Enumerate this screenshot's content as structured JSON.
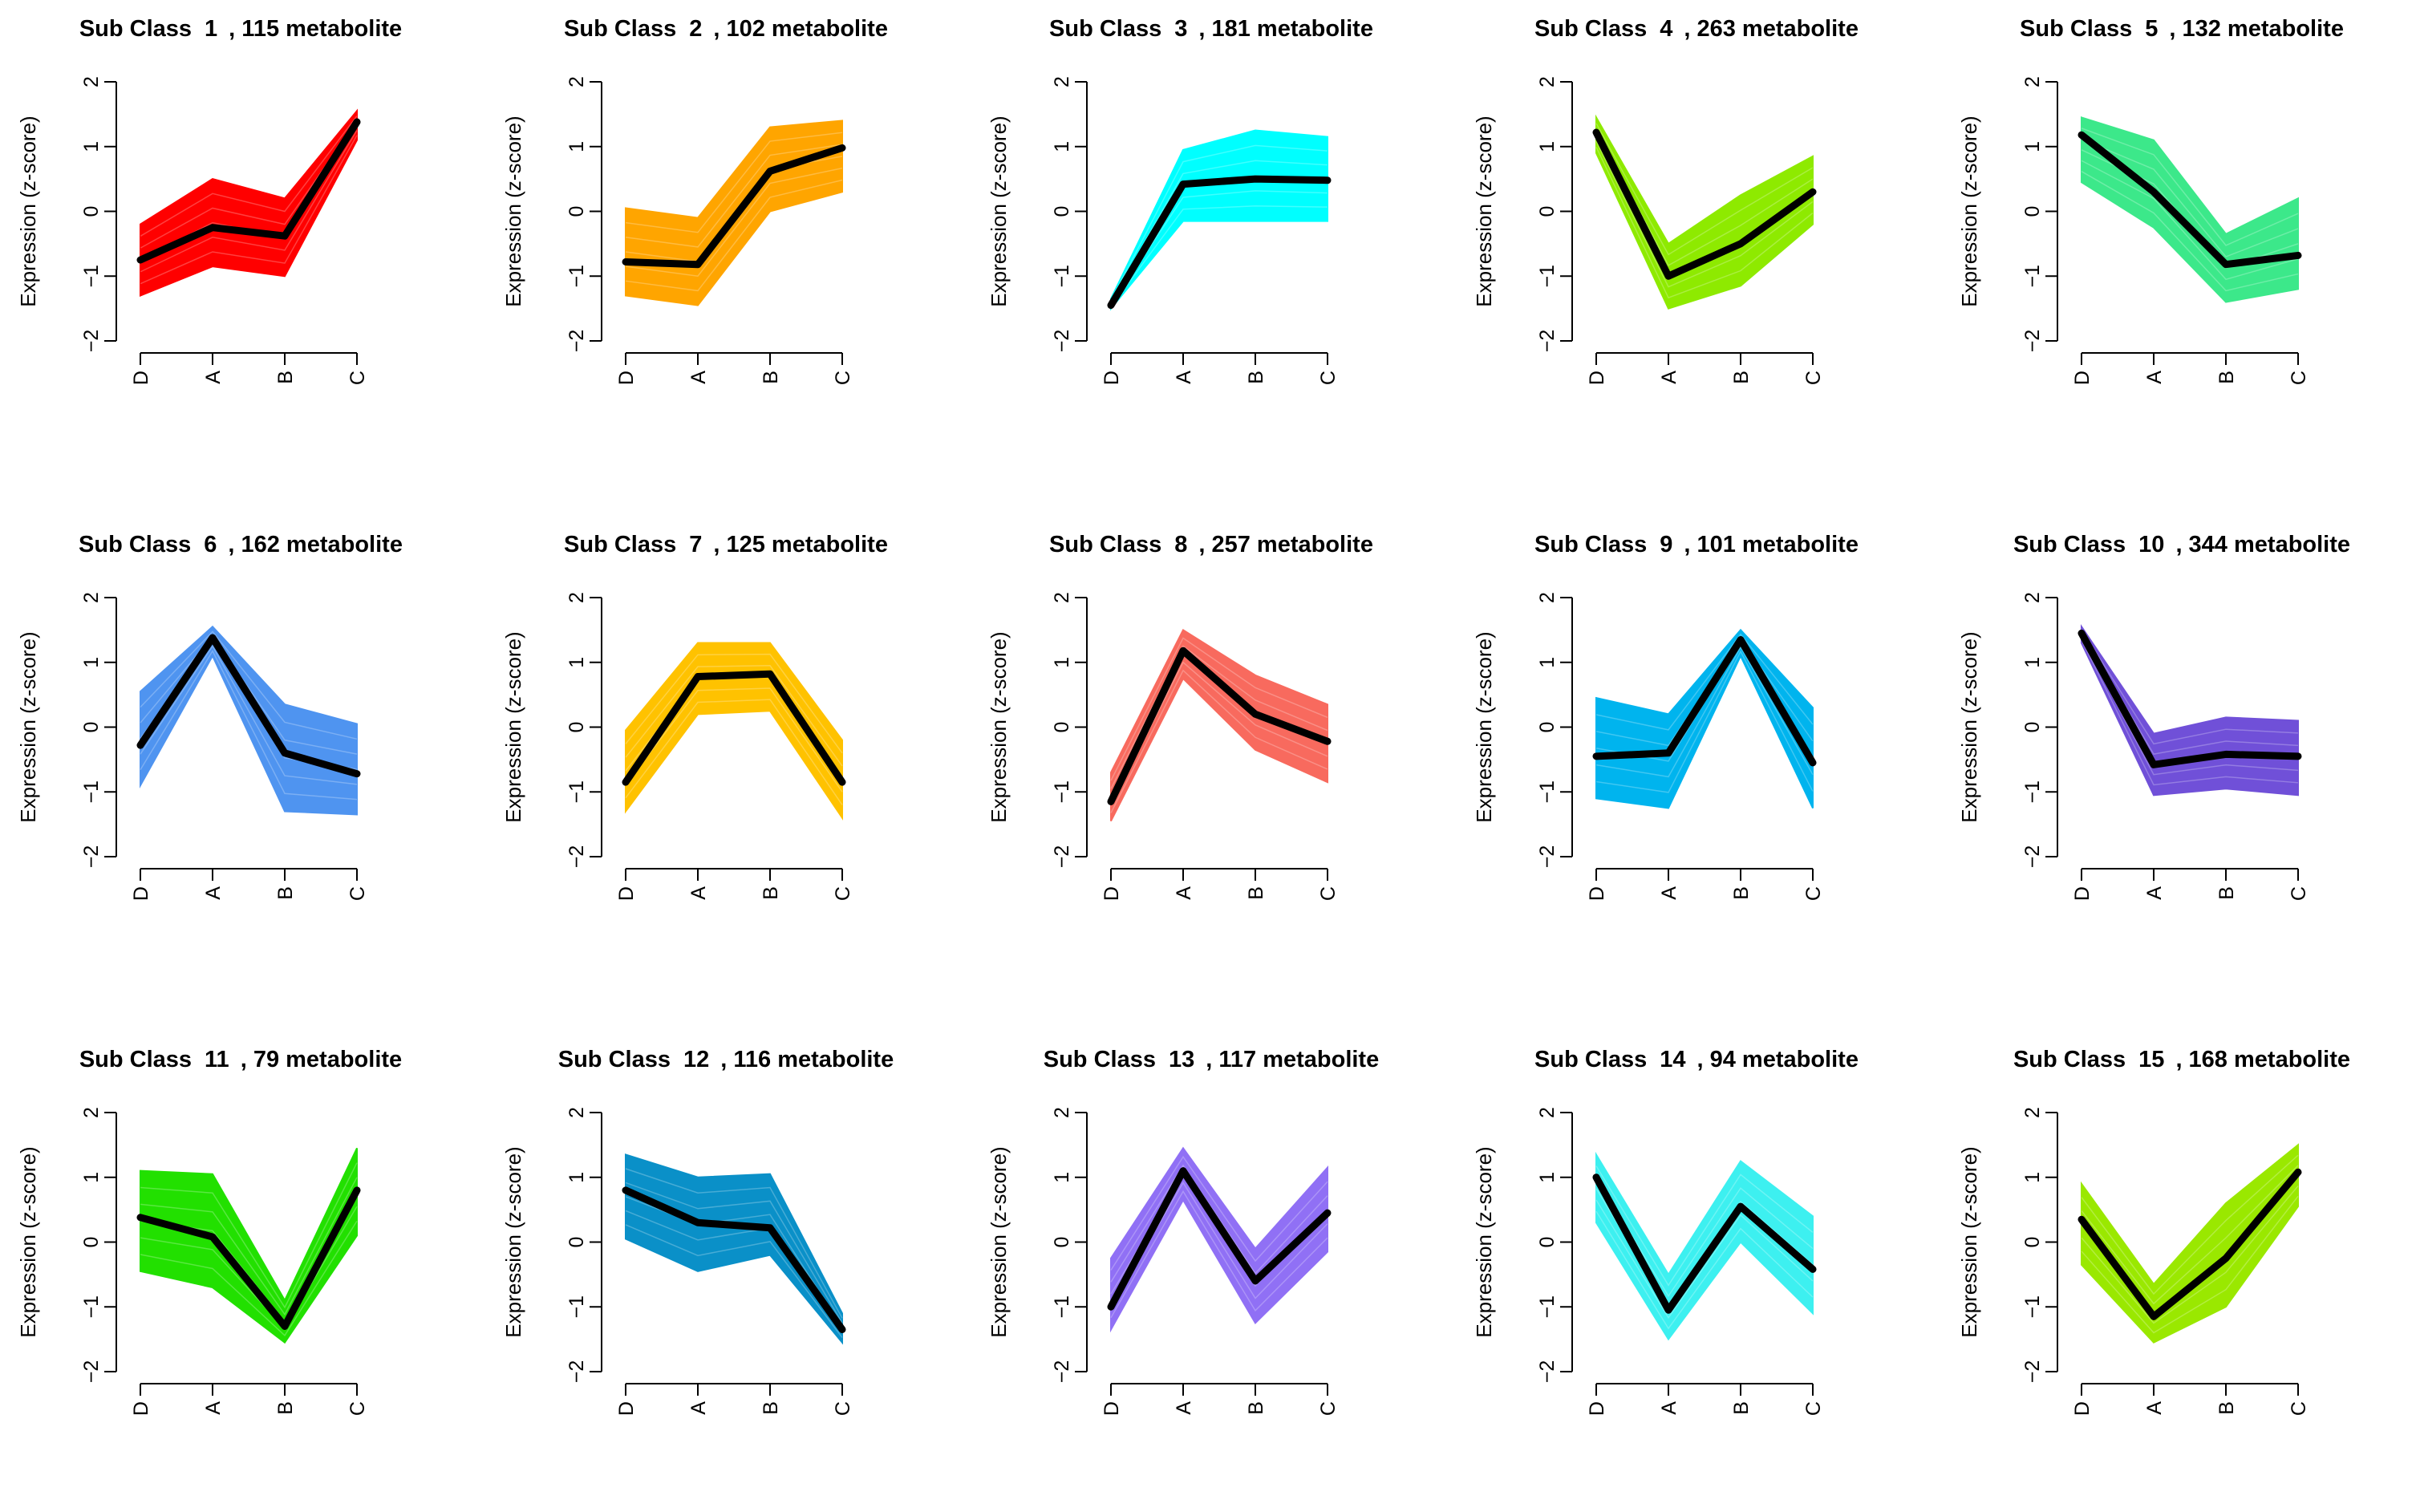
{
  "chart_data": [
    {
      "type": "line",
      "title_prefix": "Sub Class",
      "class_id": "1",
      "count_text": ", 115 metabolite",
      "ylabel": "Expression (z-score)",
      "categories": [
        "D",
        "A",
        "B",
        "C"
      ],
      "ylim": [
        -2,
        2
      ],
      "yticks": [
        "-2",
        "-1",
        "0",
        "1",
        "2"
      ],
      "color": "#ff0000",
      "mean": [
        -0.75,
        -0.25,
        -0.38,
        1.38
      ],
      "upper": [
        -0.2,
        0.5,
        0.2,
        1.55
      ],
      "lower": [
        -1.3,
        -0.85,
        -1.0,
        1.1
      ]
    },
    {
      "type": "line",
      "title_prefix": "Sub Class",
      "class_id": "2",
      "count_text": ", 102 metabolite",
      "ylabel": "Expression (z-score)",
      "categories": [
        "D",
        "A",
        "B",
        "C"
      ],
      "ylim": [
        -2,
        2
      ],
      "yticks": [
        "-2",
        "-1",
        "0",
        "1",
        "2"
      ],
      "color": "#ffa500",
      "mean": [
        -0.78,
        -0.82,
        0.62,
        0.98
      ],
      "upper": [
        0.05,
        -0.1,
        1.3,
        1.4
      ],
      "lower": [
        -1.3,
        -1.45,
        0.0,
        0.3
      ]
    },
    {
      "type": "line",
      "title_prefix": "Sub Class",
      "class_id": "3",
      "count_text": ", 181 metabolite",
      "ylabel": "Expression (z-score)",
      "categories": [
        "D",
        "A",
        "B",
        "C"
      ],
      "ylim": [
        -2,
        2
      ],
      "yticks": [
        "-2",
        "-1",
        "0",
        "1",
        "2"
      ],
      "color": "#00ffff",
      "mean": [
        -1.45,
        0.42,
        0.5,
        0.48
      ],
      "upper": [
        -1.35,
        0.95,
        1.25,
        1.15
      ],
      "lower": [
        -1.5,
        -0.15,
        -0.15,
        -0.15
      ]
    },
    {
      "type": "line",
      "title_prefix": "Sub Class",
      "class_id": "4",
      "count_text": ", 263 metabolite",
      "ylabel": "Expression (z-score)",
      "categories": [
        "D",
        "A",
        "B",
        "C"
      ],
      "ylim": [
        -2,
        2
      ],
      "yticks": [
        "-2",
        "-1",
        "0",
        "1",
        "2"
      ],
      "color": "#8eea00",
      "mean": [
        1.22,
        -1.0,
        -0.5,
        0.3
      ],
      "upper": [
        1.45,
        -0.5,
        0.25,
        0.85
      ],
      "lower": [
        0.9,
        -1.5,
        -1.15,
        -0.2
      ]
    },
    {
      "type": "line",
      "title_prefix": "Sub Class",
      "class_id": "5",
      "count_text": ", 132 metabolite",
      "ylabel": "Expression (z-score)",
      "categories": [
        "D",
        "A",
        "B",
        "C"
      ],
      "ylim": [
        -2,
        2
      ],
      "yticks": [
        "-2",
        "-1",
        "0",
        "1",
        "2"
      ],
      "color": "#3ce88a",
      "mean": [
        1.18,
        0.3,
        -0.82,
        -0.68
      ],
      "upper": [
        1.45,
        1.1,
        -0.35,
        0.2
      ],
      "lower": [
        0.45,
        -0.25,
        -1.4,
        -1.2
      ]
    },
    {
      "type": "line",
      "title_prefix": "Sub Class",
      "class_id": "6",
      "count_text": ", 162 metabolite",
      "ylabel": "Expression (z-score)",
      "categories": [
        "D",
        "A",
        "B",
        "C"
      ],
      "ylim": [
        -2,
        2
      ],
      "yticks": [
        "-2",
        "-1",
        "0",
        "1",
        "2"
      ],
      "color": "#4f94f0",
      "mean": [
        -0.28,
        1.38,
        -0.4,
        -0.72
      ],
      "upper": [
        0.55,
        1.55,
        0.35,
        0.05
      ],
      "lower": [
        -0.9,
        1.1,
        -1.3,
        -1.35
      ]
    },
    {
      "type": "line",
      "title_prefix": "Sub Class",
      "class_id": "7",
      "count_text": ", 125 metabolite",
      "ylabel": "Expression (z-score)",
      "categories": [
        "D",
        "A",
        "B",
        "C"
      ],
      "ylim": [
        -2,
        2
      ],
      "yticks": [
        "-2",
        "-1",
        "0",
        "1",
        "2"
      ],
      "color": "#ffc200",
      "mean": [
        -0.85,
        0.78,
        0.82,
        -0.85
      ],
      "upper": [
        -0.05,
        1.3,
        1.3,
        -0.2
      ],
      "lower": [
        -1.3,
        0.2,
        0.25,
        -1.4
      ]
    },
    {
      "type": "line",
      "title_prefix": "Sub Class",
      "class_id": "8",
      "count_text": ", 257 metabolite",
      "ylabel": "Expression (z-score)",
      "categories": [
        "D",
        "A",
        "B",
        "C"
      ],
      "ylim": [
        -2,
        2
      ],
      "yticks": [
        "-2",
        "-1",
        "0",
        "1",
        "2"
      ],
      "color": "#f86a5e",
      "mean": [
        -1.15,
        1.18,
        0.2,
        -0.22
      ],
      "upper": [
        -0.7,
        1.5,
        0.8,
        0.35
      ],
      "lower": [
        -1.45,
        0.75,
        -0.35,
        -0.85
      ]
    },
    {
      "type": "line",
      "title_prefix": "Sub Class",
      "class_id": "9",
      "count_text": ", 101 metabolite",
      "ylabel": "Expression (z-score)",
      "categories": [
        "D",
        "A",
        "B",
        "C"
      ],
      "ylim": [
        -2,
        2
      ],
      "yticks": [
        "-2",
        "-1",
        "0",
        "1",
        "2"
      ],
      "color": "#00b4ee",
      "mean": [
        -0.45,
        -0.4,
        1.35,
        -0.55
      ],
      "upper": [
        0.45,
        0.2,
        1.5,
        0.3
      ],
      "lower": [
        -1.1,
        -1.25,
        1.1,
        -1.25
      ]
    },
    {
      "type": "line",
      "title_prefix": "Sub Class",
      "class_id": "10",
      "count_text": ", 344 metabolite",
      "ylabel": "Expression (z-score)",
      "categories": [
        "D",
        "A",
        "B",
        "C"
      ],
      "ylim": [
        -2,
        2
      ],
      "yticks": [
        "-2",
        "-1",
        "0",
        "1",
        "2"
      ],
      "color": "#7050d8",
      "mean": [
        1.45,
        -0.58,
        -0.42,
        -0.45
      ],
      "upper": [
        1.55,
        -0.1,
        0.15,
        0.1
      ],
      "lower": [
        1.3,
        -1.05,
        -0.95,
        -1.05
      ]
    },
    {
      "type": "line",
      "title_prefix": "Sub Class",
      "class_id": "11",
      "count_text": ", 79 metabolite",
      "ylabel": "Expression (z-score)",
      "categories": [
        "D",
        "A",
        "B",
        "C"
      ],
      "ylim": [
        -2,
        2
      ],
      "yticks": [
        "-2",
        "-1",
        "0",
        "1",
        "2"
      ],
      "color": "#22e000",
      "mean": [
        0.38,
        0.08,
        -1.3,
        0.8
      ],
      "upper": [
        1.1,
        1.05,
        -0.9,
        1.45
      ],
      "lower": [
        -0.45,
        -0.7,
        -1.55,
        0.1
      ]
    },
    {
      "type": "line",
      "title_prefix": "Sub Class",
      "class_id": "12",
      "count_text": ", 116 metabolite",
      "ylabel": "Expression (z-score)",
      "categories": [
        "D",
        "A",
        "B",
        "C"
      ],
      "ylim": [
        -2,
        2
      ],
      "yticks": [
        "-2",
        "-1",
        "0",
        "1",
        "2"
      ],
      "color": "#0a90c8",
      "mean": [
        0.8,
        0.3,
        0.22,
        -1.35
      ],
      "upper": [
        1.35,
        1.0,
        1.05,
        -1.1
      ],
      "lower": [
        0.05,
        -0.45,
        -0.2,
        -1.55
      ]
    },
    {
      "type": "line",
      "title_prefix": "Sub Class",
      "class_id": "13",
      "count_text": ", 117 metabolite",
      "ylabel": "Expression (z-score)",
      "categories": [
        "D",
        "A",
        "B",
        "C"
      ],
      "ylim": [
        -2,
        2
      ],
      "yticks": [
        "-2",
        "-1",
        "0",
        "1",
        "2"
      ],
      "color": "#9070f5",
      "mean": [
        -1.0,
        1.1,
        -0.6,
        0.45
      ],
      "upper": [
        -0.25,
        1.45,
        -0.1,
        1.15
      ],
      "lower": [
        -1.35,
        0.65,
        -1.25,
        -0.15
      ]
    },
    {
      "type": "line",
      "title_prefix": "Sub Class",
      "class_id": "14",
      "count_text": ", 94 metabolite",
      "ylabel": "Expression (z-score)",
      "categories": [
        "D",
        "A",
        "B",
        "C"
      ],
      "ylim": [
        -2,
        2
      ],
      "yticks": [
        "-2",
        "-1",
        "0",
        "1",
        "2"
      ],
      "color": "#3df0f0",
      "mean": [
        1.0,
        -1.05,
        0.55,
        -0.42
      ],
      "upper": [
        1.35,
        -0.5,
        1.25,
        0.4
      ],
      "lower": [
        0.3,
        -1.5,
        0.0,
        -1.1
      ]
    },
    {
      "type": "line",
      "title_prefix": "Sub Class",
      "class_id": "15",
      "count_text": ", 168 metabolite",
      "ylabel": "Expression (z-score)",
      "categories": [
        "D",
        "A",
        "B",
        "C"
      ],
      "ylim": [
        -2,
        2
      ],
      "yticks": [
        "-2",
        "-1",
        "0",
        "1",
        "2"
      ],
      "color": "#9ae800",
      "mean": [
        0.35,
        -1.15,
        -0.25,
        1.08
      ],
      "upper": [
        0.9,
        -0.65,
        0.6,
        1.5
      ],
      "lower": [
        -0.35,
        -1.55,
        -1.0,
        0.55
      ]
    }
  ]
}
